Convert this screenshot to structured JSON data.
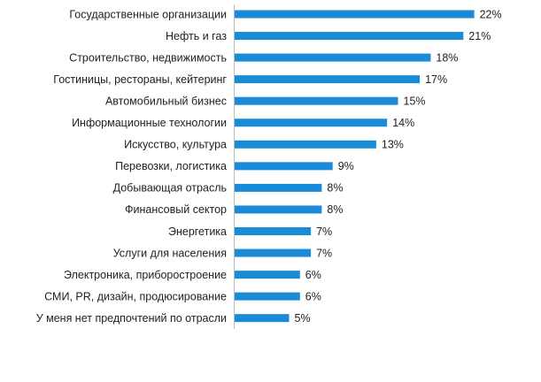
{
  "chart_data": {
    "type": "bar",
    "orientation": "horizontal",
    "color": "#1a8bd6",
    "categories": [
      "Государственные организации",
      "Нефть и газ",
      "Строительство, недвижимость",
      "Гостиницы, рестораны, кейтеринг",
      "Автомобильный бизнес",
      "Информационные технологии",
      "Искусство, культура",
      "Перевозки, логистика",
      "Добывающая отрасль",
      "Финансовый сектор",
      "Энергетика",
      "Услуги для населения",
      "Электроника, приборостроение",
      "СМИ, PR, дизайн, продюсирование",
      "У меня нет предпочтений по отрасли"
    ],
    "values": [
      22,
      21,
      18,
      17,
      15,
      14,
      13,
      9,
      8,
      8,
      7,
      7,
      6,
      6,
      5
    ],
    "value_labels": [
      "22%",
      "21%",
      "18%",
      "17%",
      "15%",
      "14%",
      "13%",
      "9%",
      "8%",
      "8%",
      "7%",
      "7%",
      "6%",
      "6%",
      "5%"
    ]
  }
}
